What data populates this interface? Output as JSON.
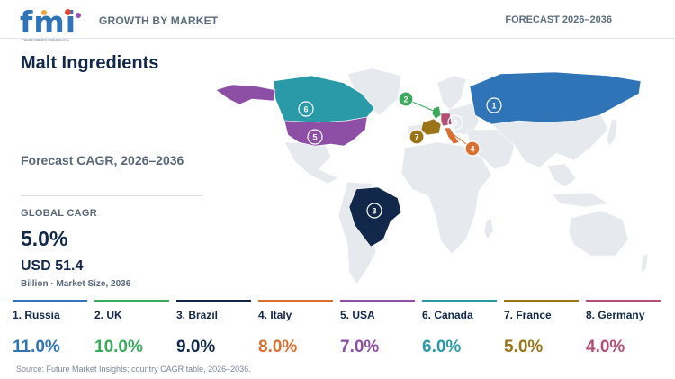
{
  "header": {
    "logo_text": "fmi",
    "logo_subtext": "Future Market Insights Inc.",
    "section": "GROWTH BY MARKET",
    "forecast": "FORECAST 2026–2036"
  },
  "summary": {
    "title": "Malt Ingredients",
    "subtitle": "Forecast CAGR, 2026–2036",
    "cagr_label": "GLOBAL CAGR",
    "cagr_value": "5.0%",
    "market_size": "USD 51.4",
    "market_size_unit": "Billion · Market Size, 2036"
  },
  "chart_data": {
    "type": "bar",
    "categories": [
      "Russia",
      "UK",
      "Brazil",
      "Italy",
      "USA",
      "Canada",
      "France",
      "Germany"
    ],
    "values": [
      11.0,
      10.0,
      9.0,
      8.0,
      7.0,
      6.0,
      5.0,
      4.0
    ],
    "value_labels": [
      "11.0%",
      "10.0%",
      "9.0%",
      "8.0%",
      "7.0%",
      "6.0%",
      "5.0%",
      "4.0%"
    ],
    "card_labels": [
      "1. Russia",
      "2. UK",
      "3. Brazil",
      "4. Italy",
      "5. USA",
      "6. Canada",
      "7. France",
      "8. Germany"
    ],
    "ranks": [
      "1",
      "2",
      "3",
      "4",
      "5",
      "6",
      "7",
      "8"
    ],
    "colors": [
      "#2e74b7",
      "#3aaa5c",
      "#12284a",
      "#d96f30",
      "#8d4fa5",
      "#2a9aa8",
      "#9a7417",
      "#b24f73"
    ],
    "unit": "%"
  },
  "source": "Source: Future Market Insights; country CAGR table, 2026–2036."
}
